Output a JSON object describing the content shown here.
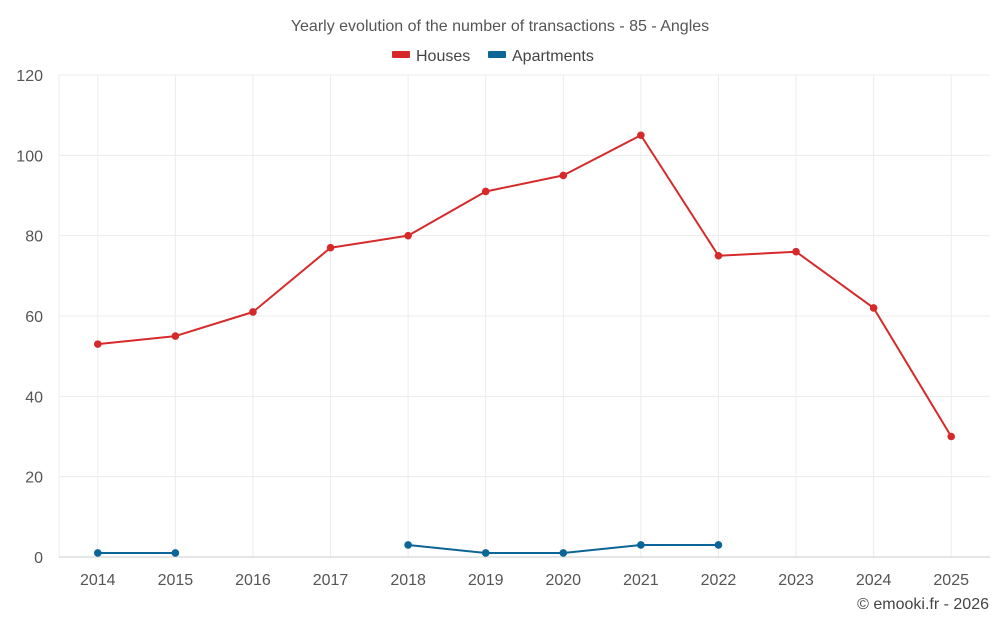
{
  "chart_data": {
    "type": "line",
    "title": "Yearly evolution of the number of transactions - 85 - Angles",
    "categories": [
      "2014",
      "2015",
      "2016",
      "2017",
      "2018",
      "2019",
      "2020",
      "2021",
      "2022",
      "2023",
      "2024",
      "2025"
    ],
    "ylim": [
      0,
      120
    ],
    "yticks": [
      0,
      20,
      40,
      60,
      80,
      100,
      120
    ],
    "grid": true,
    "legend_position": "top-center",
    "series": [
      {
        "name": "Houses",
        "color": "#d62a2a",
        "values": [
          53,
          55,
          61,
          77,
          80,
          91,
          95,
          105,
          75,
          76,
          62,
          30
        ]
      },
      {
        "name": "Apartments",
        "color": "#0b6596",
        "values": [
          1,
          1,
          null,
          null,
          3,
          1,
          1,
          3,
          3,
          null,
          null,
          null
        ]
      }
    ]
  },
  "credit": "© emooki.fr - 2026"
}
